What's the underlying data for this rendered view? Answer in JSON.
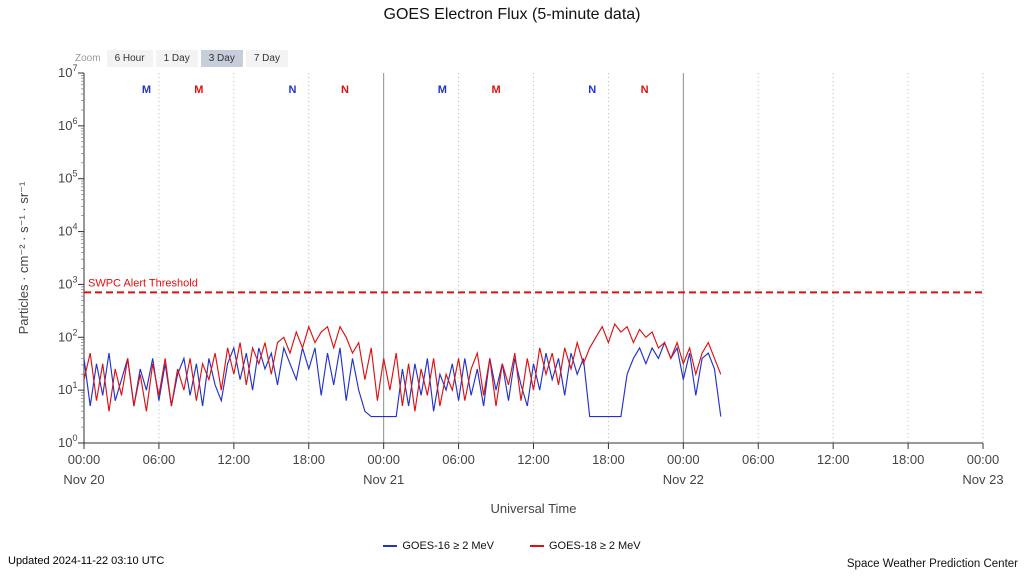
{
  "page": {
    "title": "GOES Electron Flux (5-minute data)",
    "updated": "Updated 2024-11-22 03:10 UTC",
    "source": "Space Weather Prediction Center"
  },
  "zoom": {
    "label": "Zoom",
    "options": [
      "6 Hour",
      "1 Day",
      "3 Day",
      "7 Day"
    ],
    "selected": "3 Day"
  },
  "chart_data": {
    "type": "line",
    "title": "GOES Electron Flux (5-minute data)",
    "xlabel": "Universal Time",
    "ylabel": "Particles · cm⁻² · s⁻¹ · sr⁻¹",
    "y_scale": "log10",
    "y_exponent_range": [
      0,
      7
    ],
    "x_range_hours": [
      0,
      72
    ],
    "x_tick_interval_hours": 6,
    "x_tick_labels": [
      "00:00",
      "06:00",
      "12:00",
      "18:00",
      "00:00",
      "06:00",
      "12:00",
      "18:00",
      "00:00",
      "06:00",
      "12:00",
      "18:00",
      "00:00"
    ],
    "x_date_labels": [
      {
        "hour": 0,
        "label": "Nov 20"
      },
      {
        "hour": 24,
        "label": "Nov 21"
      },
      {
        "hour": 48,
        "label": "Nov 22"
      },
      {
        "hour": 72,
        "label": "Nov 23"
      }
    ],
    "day_boundary_hours": [
      24,
      48
    ],
    "threshold": {
      "label": "SWPC Alert Threshold",
      "log10_value": 2.85,
      "color": "#e01010"
    },
    "start_hour": 0,
    "step_hours": 0.5,
    "series": [
      {
        "name": "GOES-16 ≥ 2 MeV",
        "color": "#2233cc",
        "log10_values": [
          1.6,
          0.7,
          1.5,
          0.9,
          1.7,
          0.8,
          1.2,
          1.6,
          0.7,
          1.4,
          1.0,
          1.6,
          0.8,
          1.5,
          0.7,
          1.3,
          1.6,
          0.9,
          1.5,
          0.7,
          1.6,
          1.1,
          0.8,
          1.5,
          1.8,
          1.2,
          1.7,
          1.0,
          1.8,
          1.4,
          1.7,
          1.1,
          1.8,
          1.5,
          1.2,
          1.8,
          1.4,
          1.8,
          0.9,
          1.7,
          1.1,
          1.8,
          0.8,
          1.6,
          1.0,
          0.6,
          0.5,
          0.5,
          0.5,
          0.5,
          0.5,
          1.4,
          0.7,
          1.5,
          0.9,
          1.6,
          0.6,
          1.3,
          1.0,
          1.5,
          0.8,
          1.6,
          0.9,
          1.4,
          0.7,
          1.6,
          1.0,
          1.5,
          0.8,
          1.6,
          1.1,
          0.7,
          1.5,
          1.0,
          1.7,
          1.2,
          1.6,
          0.9,
          1.7,
          1.3,
          1.6,
          0.5,
          0.5,
          0.5,
          0.5,
          0.5,
          0.5,
          1.3,
          1.6,
          1.8,
          1.5,
          1.8,
          1.6,
          1.9,
          1.6,
          1.8,
          1.2,
          1.7,
          0.9,
          1.6,
          1.7,
          1.4,
          0.5
        ]
      },
      {
        "name": "GOES-18 ≥ 2 MeV",
        "color": "#dd1111",
        "log10_values": [
          1.2,
          1.7,
          0.8,
          1.5,
          0.6,
          1.4,
          0.9,
          1.6,
          0.7,
          1.3,
          0.6,
          1.5,
          0.9,
          1.6,
          0.7,
          1.4,
          1.0,
          1.6,
          0.8,
          1.5,
          1.2,
          1.7,
          1.0,
          1.8,
          1.3,
          1.9,
          1.1,
          1.8,
          1.5,
          1.9,
          1.3,
          1.9,
          2.0,
          1.7,
          2.1,
          1.8,
          2.2,
          1.9,
          2.1,
          2.2,
          1.8,
          2.2,
          2.0,
          1.7,
          1.9,
          1.2,
          1.8,
          0.8,
          1.6,
          1.0,
          1.7,
          0.7,
          1.5,
          0.6,
          1.4,
          0.9,
          1.6,
          0.7,
          1.3,
          1.0,
          1.6,
          0.8,
          1.4,
          1.7,
          0.9,
          1.6,
          0.7,
          1.5,
          1.1,
          1.7,
          0.8,
          1.6,
          1.0,
          1.8,
          1.3,
          1.7,
          1.1,
          1.8,
          1.4,
          1.9,
          1.5,
          1.8,
          2.0,
          2.2,
          1.9,
          2.25,
          2.1,
          2.2,
          1.9,
          2.15,
          2.0,
          2.1,
          1.8,
          1.9,
          1.6,
          1.9,
          1.5,
          1.8,
          1.3,
          1.7,
          1.9,
          1.6,
          1.3
        ]
      }
    ],
    "satellite_markers": [
      {
        "label": "M",
        "series": "GOES-16",
        "hour": 5.0
      },
      {
        "label": "M",
        "series": "GOES-18",
        "hour": 9.2
      },
      {
        "label": "N",
        "series": "GOES-16",
        "hour": 16.7
      },
      {
        "label": "N",
        "series": "GOES-18",
        "hour": 20.9
      },
      {
        "label": "M",
        "series": "GOES-16",
        "hour": 28.7
      },
      {
        "label": "M",
        "series": "GOES-18",
        "hour": 33.0
      },
      {
        "label": "N",
        "series": "GOES-16",
        "hour": 40.7
      },
      {
        "label": "N",
        "series": "GOES-18",
        "hour": 44.9
      }
    ]
  }
}
